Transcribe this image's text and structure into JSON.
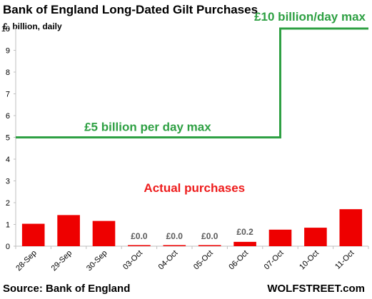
{
  "header": {
    "title": "Bank of England Long-Dated Gilt Purchases",
    "subtitle": "£, billion, daily"
  },
  "footer": {
    "source": "Source: Bank of England",
    "brand": "WOLFSTREET.com"
  },
  "colors": {
    "bar": "#ee0000",
    "limit_line": "#2ea043",
    "axis": "#bfbfbf"
  },
  "chart_data": {
    "type": "bar",
    "title": "Bank of England Long-Dated Gilt Purchases",
    "ylabel": "£, billion, daily",
    "xlabel": "",
    "categories": [
      "28-Sep",
      "29-Sep",
      "30-Sep",
      "03-Oct",
      "04-Oct",
      "05-Oct",
      "06-Oct",
      "07-Oct",
      "10-Oct",
      "11-Oct"
    ],
    "series": [
      {
        "values": [
          1.03,
          1.43,
          1.16,
          0.0,
          0.0,
          0.0,
          0.2,
          0.76,
          0.85,
          1.7
        ],
        "data_labels": [
          "",
          "",
          "",
          "£0.0",
          "£0.0",
          "£0.0",
          "£0.2",
          "",
          "",
          ""
        ]
      }
    ],
    "limit_line": {
      "values": [
        5,
        5,
        5,
        5,
        5,
        5,
        5,
        5,
        10,
        10
      ],
      "step_after_category": "07-Oct"
    },
    "ylim": [
      0,
      10
    ],
    "yticks": [
      0,
      1,
      2,
      3,
      4,
      5,
      6,
      7,
      8,
      9,
      10
    ],
    "grid": false,
    "annotations": [
      {
        "text": "£5 billion per day max",
        "color": "#2ea043"
      },
      {
        "text": "£10 billion/day max",
        "color": "#2ea043"
      },
      {
        "text": "Actual purchases",
        "color": "#ee1c1c"
      }
    ]
  }
}
